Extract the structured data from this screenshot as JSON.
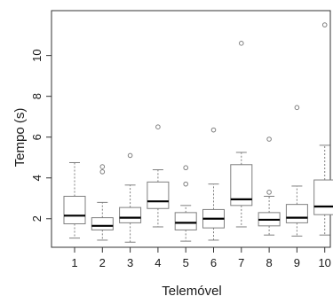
{
  "chart_data": {
    "type": "boxplot",
    "xlabel": "Telemóvel",
    "ylabel": "Tempo (s)",
    "categories": [
      "1",
      "2",
      "3",
      "4",
      "5",
      "6",
      "7",
      "8",
      "9",
      "10"
    ],
    "ylim": [
      0.6,
      12.2
    ],
    "yticks": [
      2,
      4,
      6,
      8,
      10
    ],
    "grid": false,
    "series": [
      {
        "boxes": [
          {
            "whisker_low": 1.05,
            "q1": 1.75,
            "median": 2.15,
            "q3": 3.1,
            "whisker_high": 4.75,
            "outliers": []
          },
          {
            "whisker_low": 0.95,
            "q1": 1.45,
            "median": 1.65,
            "q3": 2.05,
            "whisker_high": 2.8,
            "outliers": [
              4.55,
              4.3
            ]
          },
          {
            "whisker_low": 0.85,
            "q1": 1.8,
            "median": 2.05,
            "q3": 2.55,
            "whisker_high": 3.65,
            "outliers": [
              5.1
            ]
          },
          {
            "whisker_low": 1.6,
            "q1": 2.5,
            "median": 2.85,
            "q3": 3.8,
            "whisker_high": 4.4,
            "outliers": [
              6.5
            ]
          },
          {
            "whisker_low": 0.9,
            "q1": 1.45,
            "median": 1.8,
            "q3": 2.3,
            "whisker_high": 2.65,
            "outliers": [
              4.5,
              3.7
            ]
          },
          {
            "whisker_low": 0.95,
            "q1": 1.55,
            "median": 2.0,
            "q3": 2.45,
            "whisker_high": 3.7,
            "outliers": [
              6.35
            ]
          },
          {
            "whisker_low": 1.6,
            "q1": 2.65,
            "median": 2.95,
            "q3": 4.65,
            "whisker_high": 5.25,
            "outliers": [
              10.6
            ]
          },
          {
            "whisker_low": 1.2,
            "q1": 1.65,
            "median": 1.95,
            "q3": 2.3,
            "whisker_high": 3.1,
            "outliers": [
              5.9,
              3.3
            ]
          },
          {
            "whisker_low": 1.15,
            "q1": 1.8,
            "median": 2.05,
            "q3": 2.7,
            "whisker_high": 3.6,
            "outliers": [
              7.45
            ]
          },
          {
            "whisker_low": 1.2,
            "q1": 2.2,
            "median": 2.6,
            "q3": 3.9,
            "whisker_high": 5.6,
            "outliers": [
              11.5
            ]
          }
        ]
      }
    ],
    "colors": {
      "box_stroke": "#7f7f7f",
      "median": "#000000",
      "outlier": "#7f7f7f",
      "axis": "#333333"
    }
  }
}
